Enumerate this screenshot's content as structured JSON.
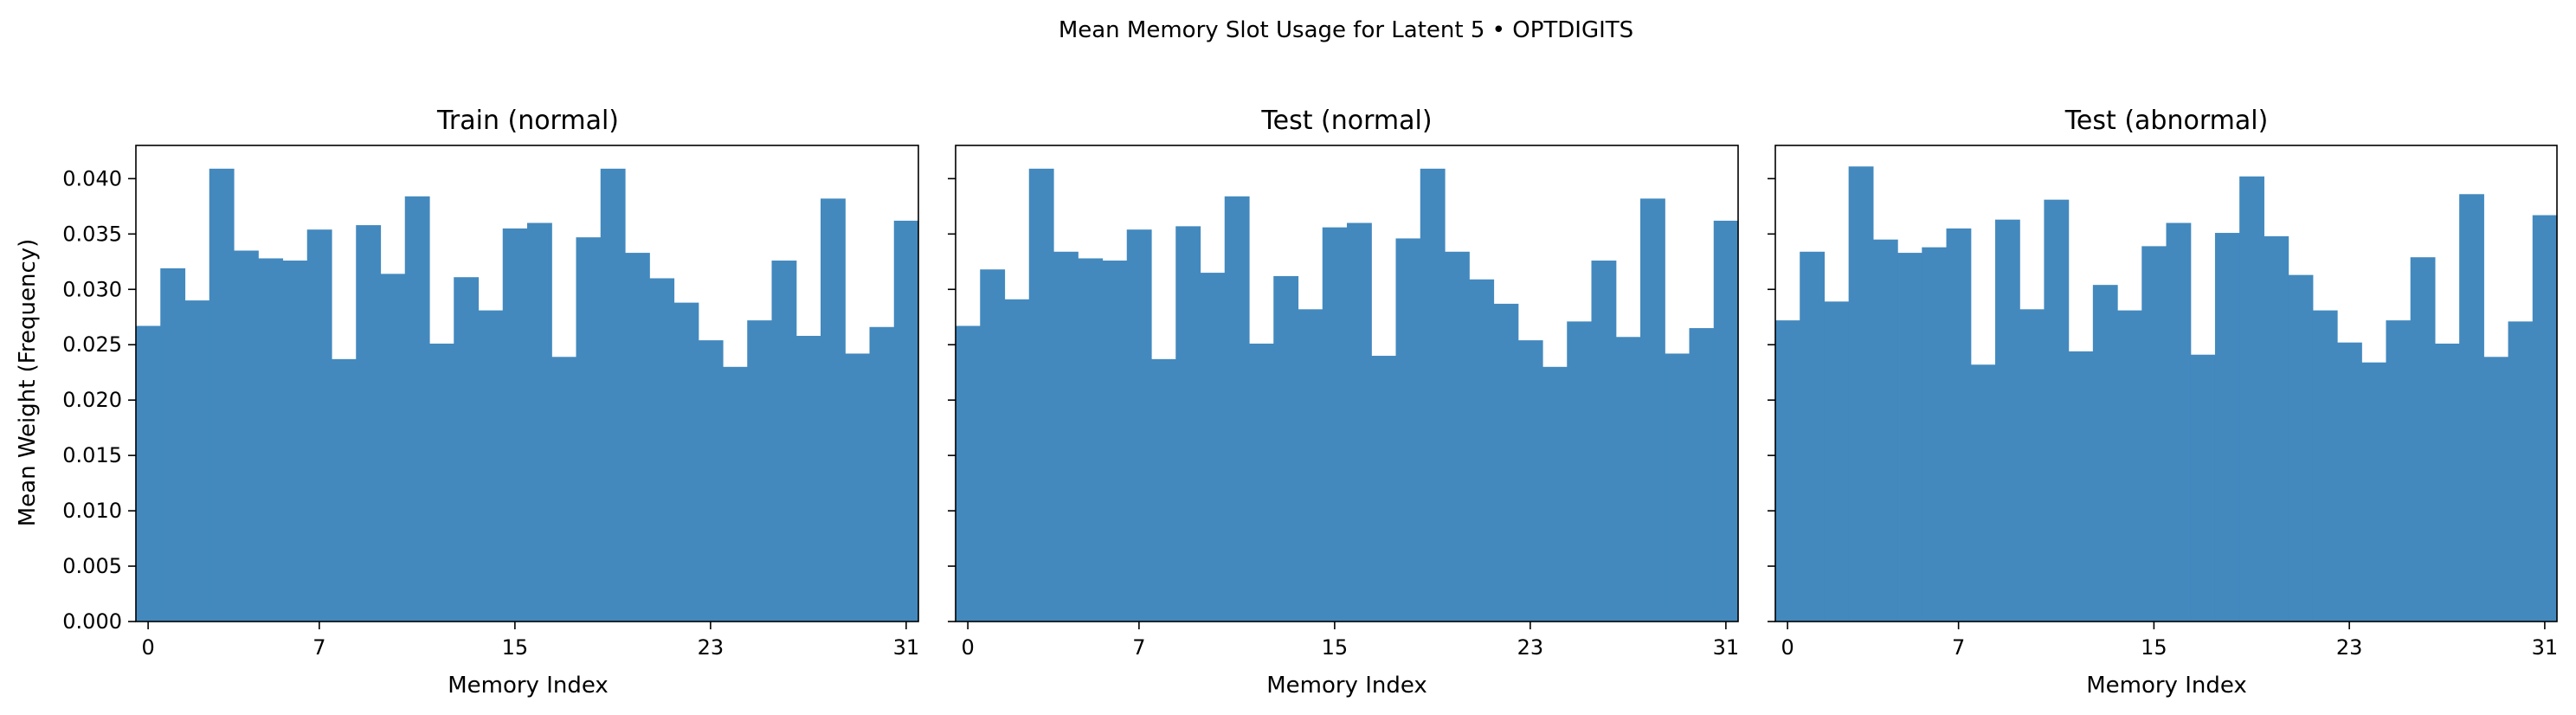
{
  "figure": {
    "suptitle": "Mean Memory Slot Usage for Latent 5 • OPTDIGITS",
    "bar_color": "#4389be"
  },
  "chart_data": [
    {
      "type": "bar",
      "title": "Train (normal)",
      "xlabel": "Memory Index",
      "ylabel": "Mean Weight (Frequency)",
      "categories": [
        0,
        1,
        2,
        3,
        4,
        5,
        6,
        7,
        8,
        9,
        10,
        11,
        12,
        13,
        14,
        15,
        16,
        17,
        18,
        19,
        20,
        21,
        22,
        23,
        24,
        25,
        26,
        27,
        28,
        29,
        30,
        31
      ],
      "values": [
        0.0267,
        0.0319,
        0.029,
        0.0409,
        0.0335,
        0.0328,
        0.0326,
        0.0354,
        0.0237,
        0.0358,
        0.0314,
        0.0384,
        0.0251,
        0.0311,
        0.0281,
        0.0355,
        0.036,
        0.0239,
        0.0347,
        0.0409,
        0.0333,
        0.031,
        0.0288,
        0.0254,
        0.023,
        0.0272,
        0.0326,
        0.0258,
        0.0382,
        0.0242,
        0.0266,
        0.0362
      ],
      "xticks": [
        0,
        7,
        15,
        23,
        31
      ],
      "yticks": [
        "0.000",
        "0.005",
        "0.010",
        "0.015",
        "0.020",
        "0.025",
        "0.030",
        "0.035",
        "0.040"
      ],
      "xlim": [
        -0.5,
        31.5
      ],
      "ylim": [
        0,
        0.043
      ],
      "grid": false,
      "legend": "none"
    },
    {
      "type": "bar",
      "title": "Test (normal)",
      "xlabel": "Memory Index",
      "ylabel": "",
      "categories": [
        0,
        1,
        2,
        3,
        4,
        5,
        6,
        7,
        8,
        9,
        10,
        11,
        12,
        13,
        14,
        15,
        16,
        17,
        18,
        19,
        20,
        21,
        22,
        23,
        24,
        25,
        26,
        27,
        28,
        29,
        30,
        31
      ],
      "values": [
        0.0267,
        0.0318,
        0.0291,
        0.0409,
        0.0334,
        0.0328,
        0.0326,
        0.0354,
        0.0237,
        0.0357,
        0.0315,
        0.0384,
        0.0251,
        0.0312,
        0.0282,
        0.0356,
        0.036,
        0.024,
        0.0346,
        0.0409,
        0.0334,
        0.0309,
        0.0287,
        0.0254,
        0.023,
        0.0271,
        0.0326,
        0.0257,
        0.0382,
        0.0242,
        0.0265,
        0.0362
      ],
      "xticks": [
        0,
        7,
        15,
        23,
        31
      ],
      "xlim": [
        -0.5,
        31.5
      ],
      "ylim": [
        0,
        0.043
      ],
      "grid": false,
      "legend": "none"
    },
    {
      "type": "bar",
      "title": "Test (abnormal)",
      "xlabel": "Memory Index",
      "ylabel": "",
      "categories": [
        0,
        1,
        2,
        3,
        4,
        5,
        6,
        7,
        8,
        9,
        10,
        11,
        12,
        13,
        14,
        15,
        16,
        17,
        18,
        19,
        20,
        21,
        22,
        23,
        24,
        25,
        26,
        27,
        28,
        29,
        30,
        31
      ],
      "values": [
        0.0272,
        0.0334,
        0.0289,
        0.0411,
        0.0345,
        0.0333,
        0.0338,
        0.0355,
        0.0232,
        0.0363,
        0.0282,
        0.0381,
        0.0244,
        0.0304,
        0.0281,
        0.0339,
        0.036,
        0.0241,
        0.0351,
        0.0402,
        0.0348,
        0.0313,
        0.0281,
        0.0252,
        0.0234,
        0.0272,
        0.0329,
        0.0251,
        0.0386,
        0.0239,
        0.0271,
        0.0367
      ],
      "xticks": [
        0,
        7,
        15,
        23,
        31
      ],
      "xlim": [
        -0.5,
        31.5
      ],
      "ylim": [
        0,
        0.043
      ],
      "grid": false,
      "legend": "none"
    }
  ]
}
